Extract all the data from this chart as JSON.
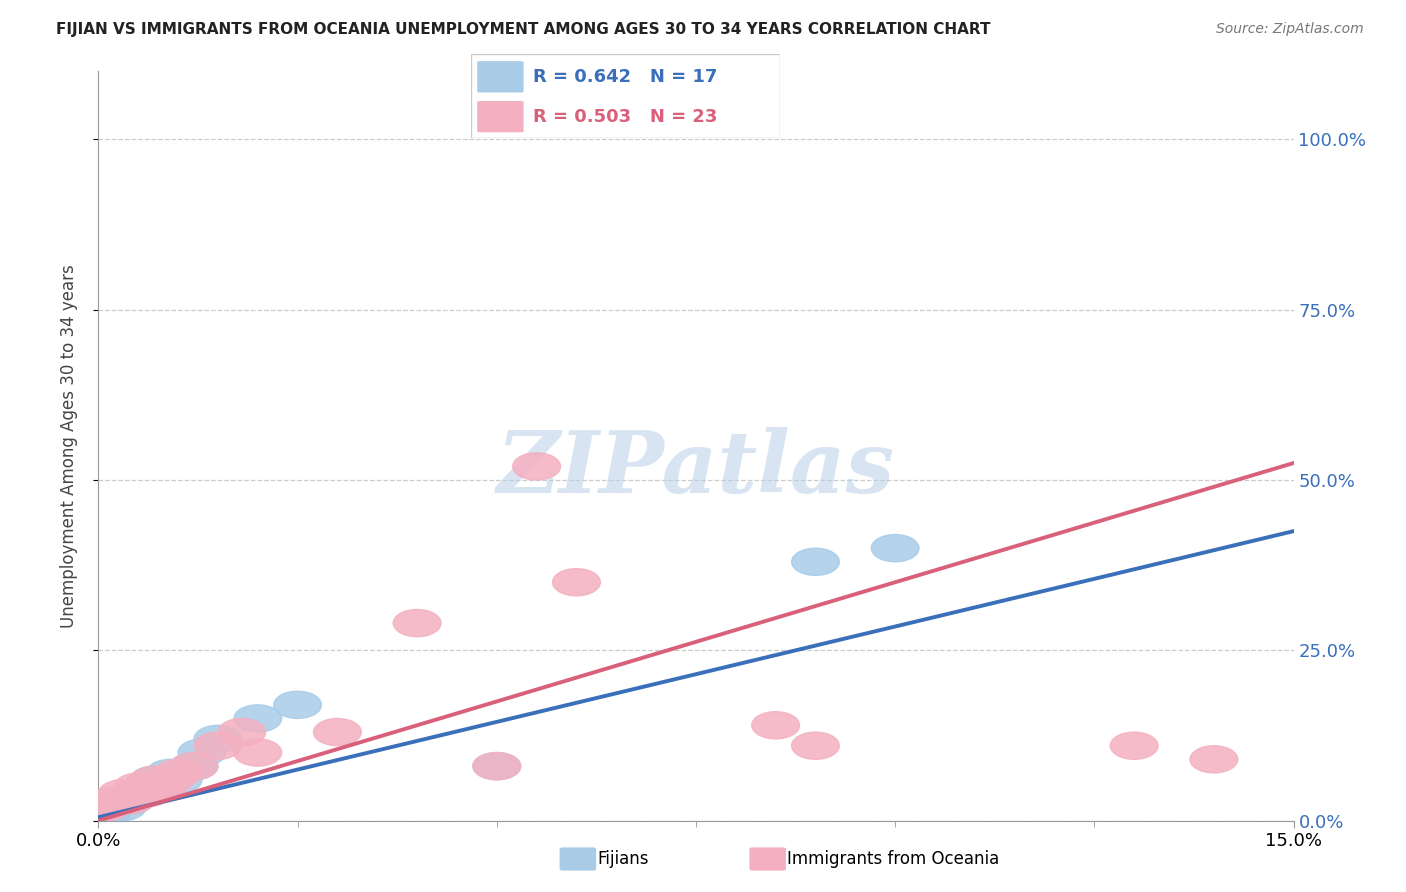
{
  "title": "FIJIAN VS IMMIGRANTS FROM OCEANIA UNEMPLOYMENT AMONG AGES 30 TO 34 YEARS CORRELATION CHART",
  "source": "Source: ZipAtlas.com",
  "ylabel": "Unemployment Among Ages 30 to 34 years",
  "xlim": [
    0.0,
    0.15
  ],
  "ylim": [
    0.0,
    1.1
  ],
  "yticks": [
    0.0,
    0.25,
    0.5,
    0.75,
    1.0
  ],
  "ytick_labels": [
    "0.0%",
    "25.0%",
    "50.0%",
    "75.0%",
    "100.0%"
  ],
  "xtick_labels": [
    "0.0%",
    "15.0%"
  ],
  "fijian_R": 0.642,
  "fijian_N": 17,
  "oceania_R": 0.503,
  "oceania_N": 23,
  "fijian_color": "#a8cce8",
  "oceania_color": "#f4b0c0",
  "fijian_line_color": "#3a6fba",
  "oceania_line_color": "#d9607a",
  "legend_fijian": "Fijians",
  "legend_oceania": "Immigrants from Oceania",
  "fijian_x": [
    0.001,
    0.003,
    0.004,
    0.005,
    0.006,
    0.007,
    0.008,
    0.009,
    0.01,
    0.012,
    0.013,
    0.015,
    0.02,
    0.025,
    0.05,
    0.09,
    0.1
  ],
  "fijian_y": [
    0.01,
    0.02,
    0.03,
    0.04,
    0.05,
    0.06,
    0.05,
    0.07,
    0.06,
    0.08,
    0.1,
    0.12,
    0.15,
    0.17,
    0.08,
    0.38,
    0.4
  ],
  "oceania_x": [
    0.001,
    0.002,
    0.003,
    0.004,
    0.005,
    0.006,
    0.007,
    0.008,
    0.009,
    0.01,
    0.012,
    0.015,
    0.018,
    0.02,
    0.03,
    0.04,
    0.05,
    0.055,
    0.06,
    0.085,
    0.09,
    0.13,
    0.14
  ],
  "oceania_y": [
    0.02,
    0.03,
    0.04,
    0.03,
    0.05,
    0.04,
    0.06,
    0.05,
    0.06,
    0.07,
    0.08,
    0.11,
    0.13,
    0.1,
    0.13,
    0.29,
    0.08,
    0.52,
    0.35,
    0.14,
    0.11,
    0.11,
    0.09
  ],
  "watermark_text": "ZIPatlas",
  "bg_color": "#ffffff",
  "grid_color": "#cccccc",
  "spine_color": "#999999"
}
